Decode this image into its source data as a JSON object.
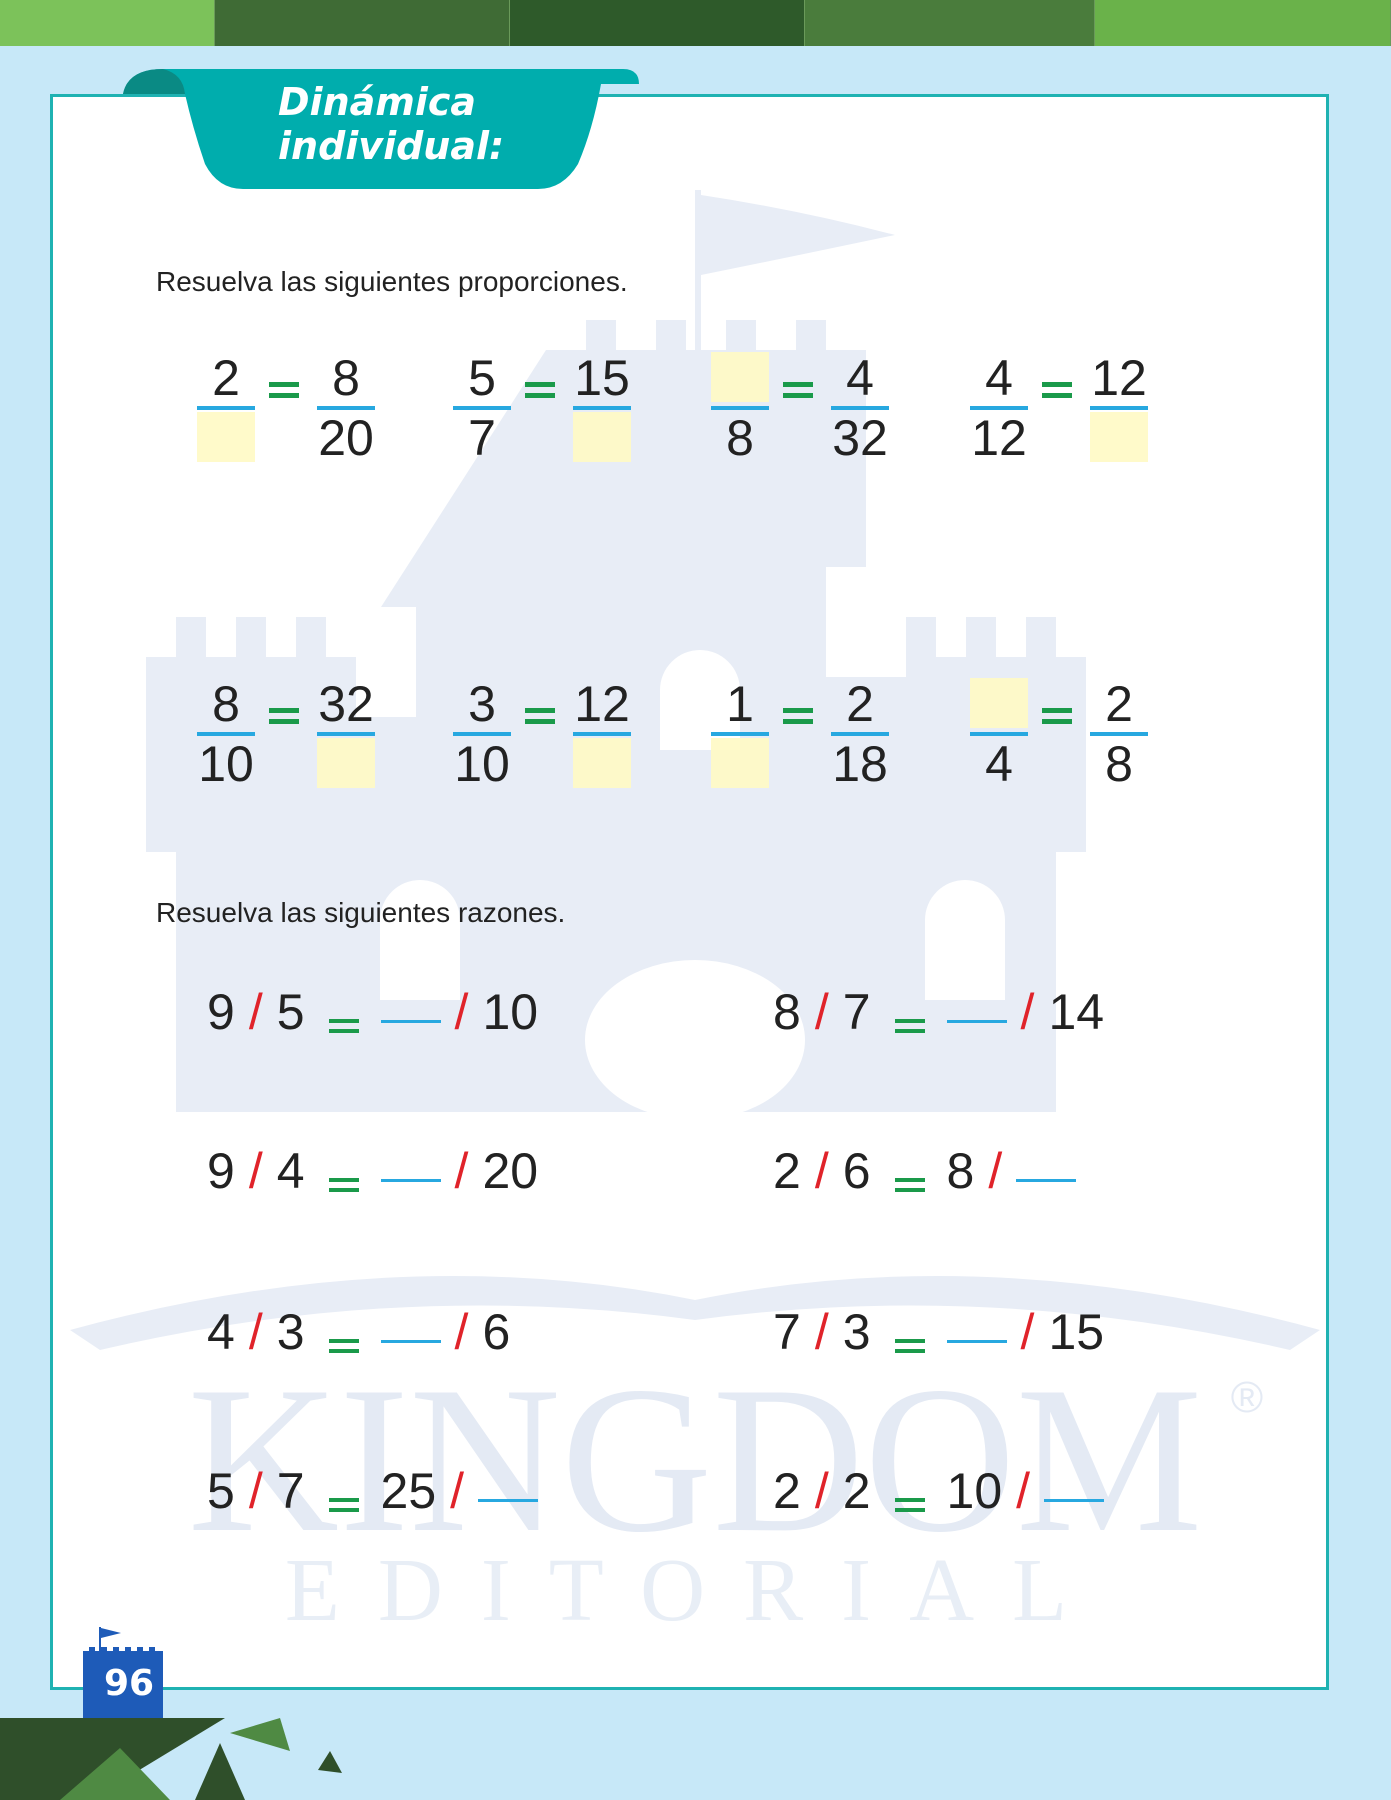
{
  "banner": {
    "line1": "Dinámica",
    "line2": "individual:"
  },
  "section1": {
    "instruction": "Resuelva las siguientes proporciones.",
    "rows": [
      [
        {
          "a": "2",
          "b": "",
          "c": "8",
          "d": "20"
        },
        {
          "a": "5",
          "b": "7",
          "c": "15",
          "d": ""
        },
        {
          "a": "",
          "b": "8",
          "c": "4",
          "d": "32"
        },
        {
          "a": "4",
          "b": "12",
          "c": "12",
          "d": ""
        }
      ],
      [
        {
          "a": "8",
          "b": "10",
          "c": "32",
          "d": ""
        },
        {
          "a": "3",
          "b": "10",
          "c": "12",
          "d": ""
        },
        {
          "a": "1",
          "b": "",
          "c": "2",
          "d": "18"
        },
        {
          "a": "",
          "b": "4",
          "c": "2",
          "d": "8"
        }
      ]
    ]
  },
  "section2": {
    "instruction": "Resuelva las siguientes razones.",
    "rows": [
      [
        {
          "a": "9",
          "b": "5",
          "c": "",
          "d": "10"
        },
        {
          "a": "8",
          "b": "7",
          "c": "",
          "d": "14"
        }
      ],
      [
        {
          "a": "9",
          "b": "4",
          "c": "",
          "d": "20"
        },
        {
          "a": "2",
          "b": "6",
          "c": "8",
          "d": ""
        }
      ],
      [
        {
          "a": "4",
          "b": "3",
          "c": "",
          "d": "6"
        },
        {
          "a": "7",
          "b": "3",
          "c": "",
          "d": "15"
        }
      ],
      [
        {
          "a": "5",
          "b": "7",
          "c": "25",
          "d": ""
        },
        {
          "a": "2",
          "b": "2",
          "c": "10",
          "d": ""
        }
      ]
    ]
  },
  "watermark": {
    "brand": "KINGDOM",
    "sub": "EDITORIAL",
    "mark": "®"
  },
  "page_number": "96",
  "colors": {
    "teal": "#00adad",
    "blank_box": "#fff9c4",
    "fraction_bar": "#27a8e0",
    "equals": "#1a9a4a",
    "slash": "#e0232a",
    "page_badge": "#1e5bb8",
    "background": "#c7e8f8"
  }
}
